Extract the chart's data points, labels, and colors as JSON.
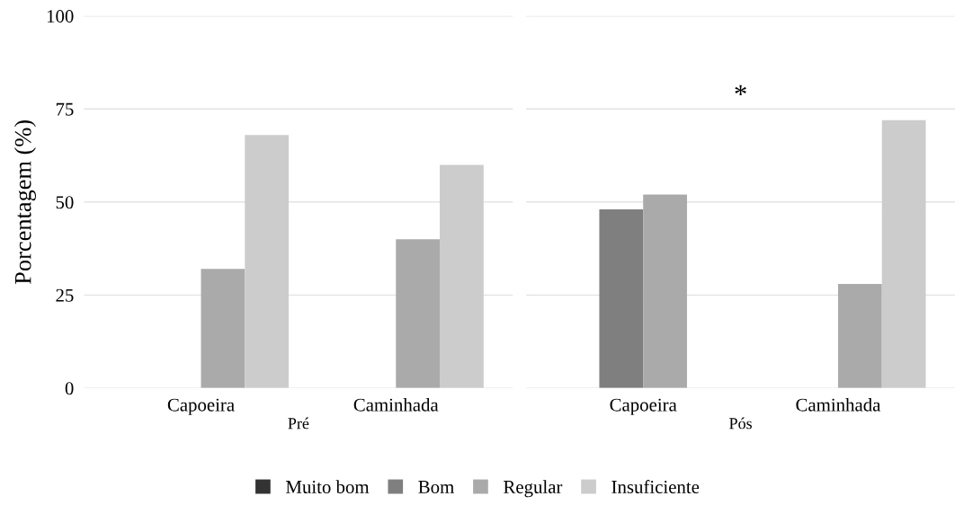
{
  "chart_data": [
    {
      "type": "bar",
      "xlabel": "Pré",
      "ylabel": "Porcentagem (%)",
      "categories": [
        "Capoeira",
        "Caminhada"
      ],
      "series": [
        {
          "name": "Muito bom",
          "color": "#333333",
          "values": [
            0,
            0
          ]
        },
        {
          "name": "Bom",
          "color": "#7f7f7f",
          "values": [
            0,
            0
          ]
        },
        {
          "name": "Regular",
          "color": "#aaaaaa",
          "values": [
            32,
            40
          ]
        },
        {
          "name": "Insuficiente",
          "color": "#cccccc",
          "values": [
            68,
            60
          ]
        }
      ],
      "ylim": [
        0,
        100
      ],
      "yticks": [
        0,
        25,
        50,
        75,
        100
      ],
      "grid": "y",
      "legend": "bottom"
    },
    {
      "type": "bar",
      "xlabel": "Pós",
      "categories": [
        "Capoeira",
        "Caminhada"
      ],
      "series": [
        {
          "color": "#333333",
          "values": [
            0,
            0
          ]
        },
        {
          "color": "#7f7f7f",
          "values": [
            48,
            0
          ]
        },
        {
          "color": "#aaaaaa",
          "values": [
            52,
            28
          ]
        },
        {
          "color": "#cccccc",
          "values": [
            0,
            72
          ]
        }
      ],
      "ylim": [
        0,
        100
      ],
      "yticks": [
        0,
        25,
        50,
        75,
        100
      ],
      "grid": "y",
      "tick_labels": "x",
      "annotations": [
        "*"
      ]
    }
  ]
}
